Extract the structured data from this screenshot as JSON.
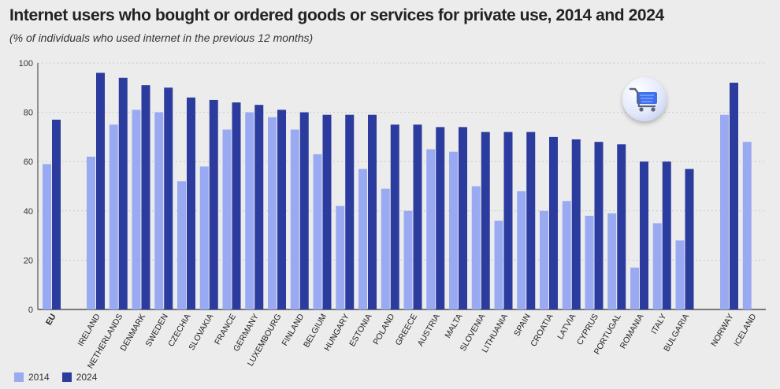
{
  "header": {
    "title": "Internet users who bought or ordered goods or services for private use, 2014 and 2024",
    "subtitle": "(% of individuals who used internet in the previous 12 months)"
  },
  "colors": {
    "series_2014": "#9aaaf2",
    "series_2024": "#2b3c9e",
    "grid": "#c9c9c9",
    "axis": "#333333"
  },
  "icon": "shopping-cart-icon",
  "chart_data": {
    "type": "bar",
    "title": "Internet users who bought or ordered goods or services for private use, 2014 and 2024",
    "xlabel": "",
    "ylabel": "% of individuals who used internet in the previous 12 months",
    "ylim": [
      0,
      100
    ],
    "yticks": [
      0,
      20,
      40,
      60,
      80,
      100
    ],
    "grid": true,
    "legend_position": "bottom-left",
    "categories": [
      "EU",
      "IRELAND",
      "NETHERLANDS",
      "DENMARK",
      "SWEDEN",
      "CZECHIA",
      "SLOVAKIA",
      "FRANCE",
      "GERMANY",
      "LUXEMBOURG",
      "FINLAND",
      "BELGIUM",
      "HUNGARY",
      "ESTONIA",
      "POLAND",
      "GREECE",
      "AUSTRIA",
      "MALTA",
      "SLOVENIA",
      "LITHUANIA",
      "SPAIN",
      "CROATIA",
      "LATVIA",
      "CYPRUS",
      "PORTUGAL",
      "ROMANIA",
      "ITALY",
      "BULGARIA",
      "NORWAY",
      "ICELAND"
    ],
    "series": [
      {
        "name": "2014",
        "values": [
          59,
          62,
          75,
          81,
          80,
          52,
          58,
          73,
          80,
          78,
          73,
          63,
          42,
          57,
          49,
          40,
          65,
          64,
          50,
          36,
          48,
          40,
          44,
          38,
          39,
          17,
          35,
          28,
          79,
          68
        ]
      },
      {
        "name": "2024",
        "values": [
          77,
          96,
          94,
          91,
          90,
          86,
          85,
          84,
          83,
          81,
          80,
          79,
          79,
          79,
          75,
          75,
          74,
          74,
          72,
          72,
          72,
          70,
          69,
          68,
          67,
          60,
          60,
          57,
          92,
          null
        ]
      }
    ]
  }
}
